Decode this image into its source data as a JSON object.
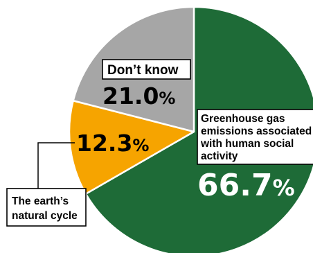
{
  "chart_data": {
    "type": "pie",
    "title": "",
    "slices": [
      {
        "label_lines": [
          "Greenhouse gas",
          "emissions associated",
          "with human social",
          "activity"
        ],
        "value": 66.7,
        "value_text": "66.7",
        "unit": "%",
        "color": "#1e6b37",
        "value_color": "#ffffff"
      },
      {
        "label_lines": [
          "The earth’s",
          "natural cycle"
        ],
        "value": 12.3,
        "value_text": "12.3",
        "unit": "%",
        "color": "#f6a400",
        "value_color": "#000000"
      },
      {
        "label_lines": [
          "Don’t know"
        ],
        "value": 21.0,
        "value_text": "21.0",
        "unit": "%",
        "color": "#a6a6a6",
        "value_color": "#000000"
      }
    ],
    "start": "12 o'clock",
    "direction": "clockwise"
  }
}
